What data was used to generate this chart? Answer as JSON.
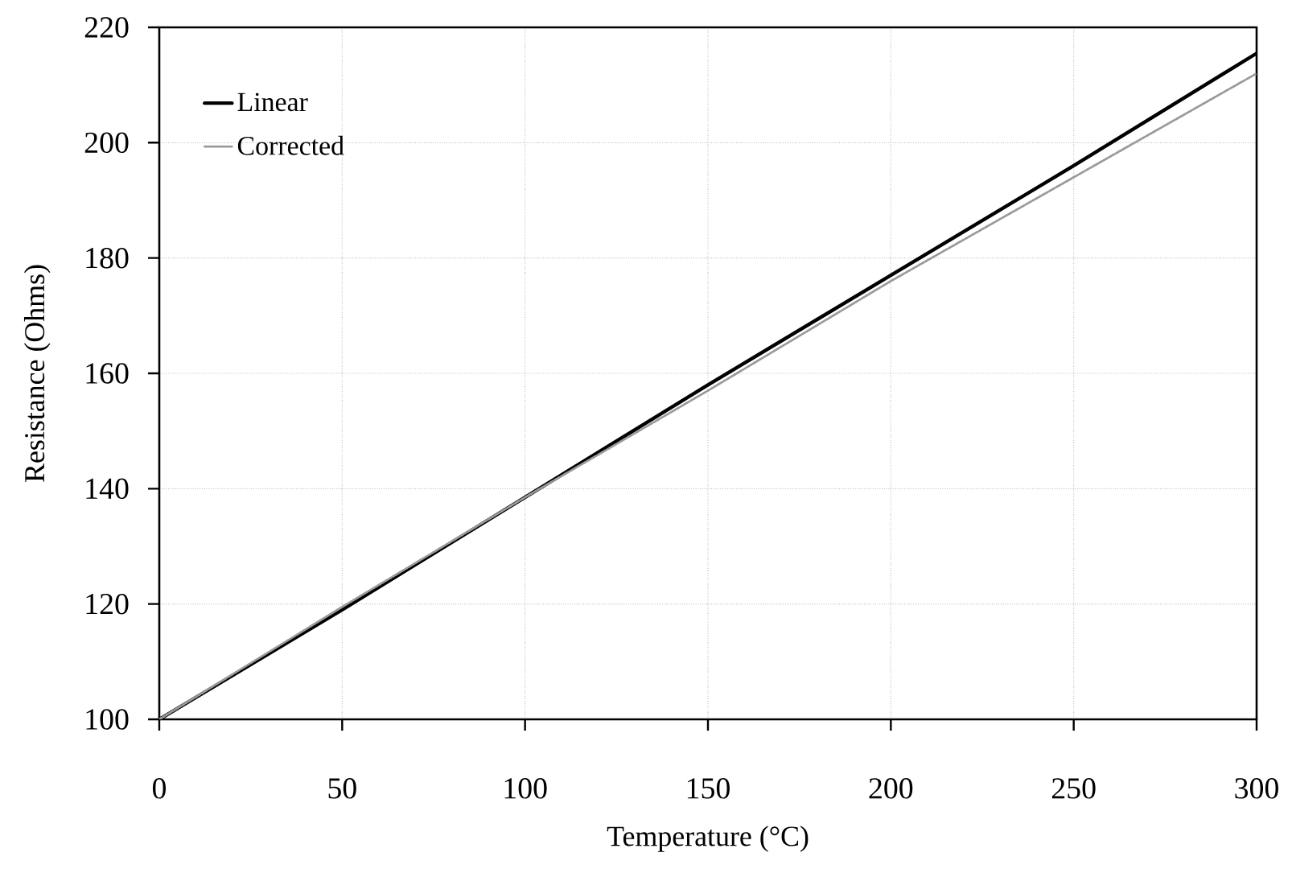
{
  "chart_data": {
    "type": "line",
    "xlabel": "Temperature (°C)",
    "ylabel": "Resistance (Ohms)",
    "x": [
      0,
      50,
      100,
      150,
      200,
      250,
      300
    ],
    "series": [
      {
        "name": "Linear",
        "color": "#000000",
        "line_style": "solid",
        "values": [
          100,
          119,
          138.5,
          158,
          177,
          196,
          215.5
        ]
      },
      {
        "name": "Corrected",
        "color": "#9a9a9a",
        "line_style": "dotted",
        "values": [
          100,
          119.5,
          138.5,
          157,
          176,
          194,
          212
        ]
      }
    ],
    "xlim": [
      0,
      300
    ],
    "ylim": [
      100,
      220
    ],
    "xticks": [
      0,
      50,
      100,
      150,
      200,
      250,
      300
    ],
    "yticks": [
      100,
      120,
      140,
      160,
      180,
      200,
      220
    ],
    "grid": true,
    "legend": "top left",
    "marker": "none"
  }
}
